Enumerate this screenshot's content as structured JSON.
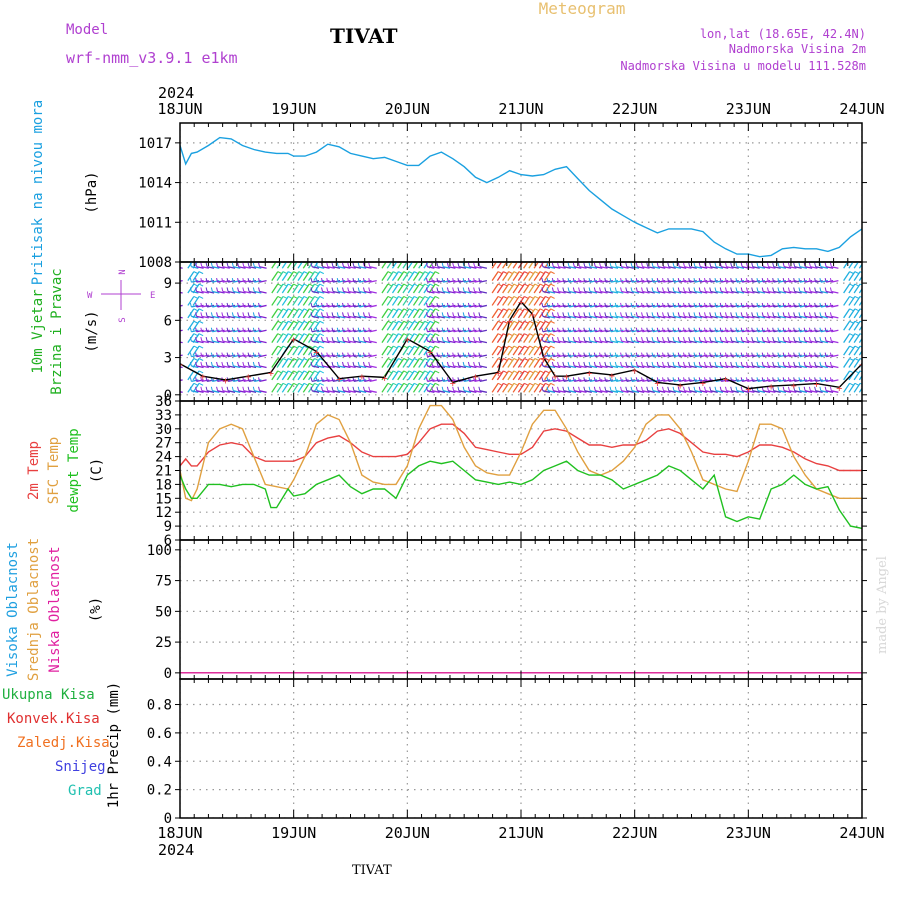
{
  "header": {
    "model_label": "Model",
    "model_name": "wrf-nmm_v3.9.1 e1km",
    "station": "TIVAT",
    "product": "Meteogram",
    "location_line1": "lon,lat (18.65E, 42.4N)",
    "location_line2": "Nadmorska Visina 2m",
    "location_line3": "Nadmorska Visina u modelu 111.528m"
  },
  "footer": {
    "station": "TIVAT",
    "credit": "made by Angel"
  },
  "time_axis": {
    "year": "2024",
    "days": [
      "18JUN",
      "19JUN",
      "20JUN",
      "21JUN",
      "22JUN",
      "23JUN",
      "24JUN"
    ]
  },
  "colors": {
    "pressure": "#1aa0e0",
    "t2m": "#e84040",
    "sfc": "#e0a040",
    "dewpt": "#20c020",
    "visoka": "#20a0e0",
    "srednja": "#e0a040",
    "niska": "#e020a0",
    "ukupna": "#20b040",
    "konvek": "#e03030",
    "zaledj": "#f07020",
    "snijeg": "#4040e0",
    "grad": "#20c0b0",
    "wind_title": "#20b020",
    "compass": "#b040d0",
    "header_purple": "#b040d0",
    "meteogram_title": "#e8c070",
    "credit": "#d0d0d0"
  },
  "chart_data": [
    {
      "type": "line",
      "panel": "pressure",
      "ylabel_lines": [
        "Pritisak na nivou mora"
      ],
      "unit": "(hPa)",
      "ylim": [
        1008,
        1018.5
      ],
      "yticks": [
        1008,
        1011,
        1014,
        1017
      ],
      "grid": true,
      "series": [
        {
          "color_key": "pressure",
          "x": [
            0,
            0.05,
            0.1,
            0.15,
            0.25,
            0.35,
            0.45,
            0.55,
            0.65,
            0.75,
            0.85,
            0.95,
            1.0,
            1.1,
            1.2,
            1.3,
            1.4,
            1.5,
            1.6,
            1.7,
            1.8,
            1.9,
            2.0,
            2.1,
            2.2,
            2.3,
            2.4,
            2.5,
            2.6,
            2.7,
            2.8,
            2.9,
            3.0,
            3.1,
            3.2,
            3.3,
            3.4,
            3.5,
            3.6,
            3.7,
            3.8,
            3.9,
            4.0,
            4.1,
            4.2,
            4.3,
            4.4,
            4.5,
            4.6,
            4.7,
            4.8,
            4.9,
            5.0,
            5.1,
            5.2,
            5.3,
            5.4,
            5.5,
            5.6,
            5.7,
            5.8,
            5.9,
            6.0
          ],
          "y": [
            1016.8,
            1015.4,
            1016.2,
            1016.3,
            1016.8,
            1017.4,
            1017.3,
            1016.8,
            1016.5,
            1016.3,
            1016.2,
            1016.2,
            1016.0,
            1016.0,
            1016.3,
            1016.9,
            1016.7,
            1016.2,
            1016.0,
            1015.8,
            1015.9,
            1015.6,
            1015.3,
            1015.3,
            1016.0,
            1016.3,
            1015.8,
            1015.2,
            1014.4,
            1014.0,
            1014.4,
            1014.9,
            1014.6,
            1014.5,
            1014.6,
            1015.0,
            1015.2,
            1014.3,
            1013.4,
            1012.7,
            1012.0,
            1011.5,
            1011.0,
            1010.6,
            1010.2,
            1010.5,
            1010.5,
            1010.5,
            1010.3,
            1009.5,
            1009.0,
            1008.6,
            1008.6,
            1008.4,
            1008.5,
            1009.0,
            1009.1,
            1009.0,
            1009.0,
            1008.8,
            1009.1,
            1009.9,
            1010.5
          ]
        }
      ]
    },
    {
      "type": "barbs",
      "panel": "wind",
      "ylabel_lines": [
        "10m Vjetar",
        "Brzina i Pravac"
      ],
      "unit": "(m/s)",
      "ylim": [
        -0.5,
        10.7
      ],
      "yticks": [
        0,
        3,
        6,
        9
      ],
      "compass": {
        "n": "N",
        "s": "S",
        "w": "W",
        "e": "E"
      },
      "grid": true,
      "speed_line": {
        "x": [
          0,
          0.2,
          0.4,
          0.6,
          0.8,
          1.0,
          1.2,
          1.4,
          1.6,
          1.8,
          2.0,
          2.2,
          2.4,
          2.6,
          2.8,
          2.9,
          3.0,
          3.1,
          3.2,
          3.3,
          3.4,
          3.6,
          3.8,
          4.0,
          4.2,
          4.4,
          4.6,
          4.8,
          5.0,
          5.2,
          5.4,
          5.6,
          5.8,
          6.0
        ],
        "y": [
          2.5,
          1.5,
          1.2,
          1.5,
          1.8,
          4.5,
          3.5,
          1.3,
          1.5,
          1.4,
          4.5,
          3.5,
          1.0,
          1.5,
          1.8,
          6.0,
          7.5,
          6.5,
          3.0,
          1.5,
          1.5,
          1.8,
          1.6,
          2.0,
          1.0,
          0.8,
          1.0,
          1.3,
          0.5,
          0.7,
          0.8,
          0.9,
          0.6,
          2.5
        ]
      }
    },
    {
      "type": "line",
      "panel": "temperature",
      "ylabel_lines": [
        "2m Temp",
        "SFC Temp",
        "dewpt Temp"
      ],
      "unit": "(C)",
      "ylim": [
        6,
        36
      ],
      "yticks": [
        6,
        9,
        12,
        15,
        18,
        21,
        24,
        27,
        30,
        33,
        36
      ],
      "grid": true,
      "series": [
        {
          "color_key": "t2m",
          "x": [
            0,
            0.05,
            0.1,
            0.15,
            0.25,
            0.35,
            0.45,
            0.55,
            0.65,
            0.75,
            0.85,
            0.95,
            1.0,
            1.1,
            1.2,
            1.3,
            1.4,
            1.5,
            1.6,
            1.7,
            1.8,
            1.9,
            2.0,
            2.1,
            2.2,
            2.3,
            2.4,
            2.5,
            2.6,
            2.7,
            2.8,
            2.9,
            3.0,
            3.1,
            3.2,
            3.3,
            3.4,
            3.5,
            3.6,
            3.7,
            3.8,
            3.9,
            4.0,
            4.1,
            4.2,
            4.3,
            4.4,
            4.5,
            4.6,
            4.7,
            4.8,
            4.9,
            5.0,
            5.1,
            5.2,
            5.3,
            5.4,
            5.5,
            5.6,
            5.7,
            5.8,
            5.9,
            6.0
          ],
          "y": [
            22,
            23.5,
            22,
            22,
            25,
            26.5,
            27,
            26.5,
            24,
            23,
            23,
            23,
            23,
            24,
            27,
            28,
            28.5,
            27,
            25,
            24,
            24,
            24,
            24.5,
            27,
            30,
            31,
            31,
            29,
            26,
            25.5,
            25,
            24.5,
            24.5,
            26,
            29.5,
            30,
            29.5,
            28,
            26.5,
            26.5,
            26,
            26.5,
            26.5,
            27.5,
            29.5,
            30,
            29,
            27,
            25,
            24.5,
            24.5,
            24,
            25,
            26.5,
            26.5,
            26,
            25,
            23.5,
            22.5,
            22,
            21,
            21,
            21
          ]
        },
        {
          "color_key": "sfc",
          "x": [
            0,
            0.05,
            0.1,
            0.15,
            0.25,
            0.35,
            0.45,
            0.55,
            0.65,
            0.75,
            0.85,
            0.95,
            1.0,
            1.1,
            1.2,
            1.3,
            1.4,
            1.5,
            1.6,
            1.7,
            1.8,
            1.9,
            2.0,
            2.1,
            2.2,
            2.3,
            2.4,
            2.5,
            2.6,
            2.7,
            2.8,
            2.9,
            3.0,
            3.1,
            3.2,
            3.3,
            3.4,
            3.5,
            3.6,
            3.7,
            3.8,
            3.9,
            4.0,
            4.1,
            4.2,
            4.3,
            4.4,
            4.5,
            4.6,
            4.7,
            4.8,
            4.9,
            5.0,
            5.1,
            5.2,
            5.3,
            5.4,
            5.5,
            5.6,
            5.7,
            5.8,
            5.9,
            6.0
          ],
          "y": [
            21,
            15,
            14.5,
            17,
            27,
            30,
            31,
            30,
            24,
            18,
            17.5,
            17,
            19,
            24,
            31,
            33,
            32,
            27,
            20,
            18.5,
            18,
            18,
            22,
            30,
            35,
            35,
            32,
            26,
            22,
            20.5,
            20,
            20,
            25,
            31,
            34,
            34,
            30,
            25,
            21,
            20,
            21,
            23,
            26,
            31,
            33,
            33,
            30,
            25,
            19,
            18,
            17,
            16.5,
            23,
            31,
            31,
            30,
            24,
            20,
            17,
            16,
            15,
            15,
            15
          ]
        },
        {
          "color_key": "dewpt",
          "x": [
            0,
            0.05,
            0.1,
            0.15,
            0.25,
            0.35,
            0.45,
            0.55,
            0.65,
            0.75,
            0.8,
            0.85,
            0.95,
            1.0,
            1.1,
            1.2,
            1.3,
            1.4,
            1.5,
            1.6,
            1.7,
            1.8,
            1.9,
            2.0,
            2.1,
            2.2,
            2.3,
            2.4,
            2.5,
            2.6,
            2.7,
            2.8,
            2.9,
            3.0,
            3.1,
            3.2,
            3.3,
            3.4,
            3.5,
            3.6,
            3.7,
            3.8,
            3.9,
            4.0,
            4.1,
            4.2,
            4.3,
            4.4,
            4.5,
            4.6,
            4.7,
            4.8,
            4.9,
            5.0,
            5.1,
            5.2,
            5.3,
            5.4,
            5.5,
            5.6,
            5.7,
            5.8,
            5.9,
            6.0
          ],
          "y": [
            20,
            17,
            15,
            15,
            18,
            18,
            17.5,
            18,
            18,
            17,
            13,
            13,
            17,
            15.5,
            16,
            18,
            19,
            20,
            17.5,
            16,
            17,
            17,
            15,
            20,
            22,
            23,
            22.5,
            23,
            21,
            19,
            18.5,
            18,
            18.5,
            18,
            19,
            21,
            22,
            23,
            21,
            20,
            20,
            19,
            17,
            18,
            19,
            20,
            22,
            21,
            19,
            17,
            20,
            11,
            10,
            11,
            10.5,
            17,
            18,
            20,
            18,
            17,
            17.5,
            12.5,
            9,
            8.5
          ]
        }
      ]
    },
    {
      "type": "line",
      "panel": "cloud",
      "ylabel_lines": [
        "Visoka Oblacnost",
        "Srednja Oblacnost",
        "Niska Oblacnost"
      ],
      "unit": "(%)",
      "ylim": [
        -5,
        108
      ],
      "yticks": [
        0,
        25,
        50,
        75,
        100
      ],
      "grid": true,
      "series": [
        {
          "color_key": "visoka",
          "x": [
            0,
            6
          ],
          "y": [
            0,
            0
          ]
        },
        {
          "color_key": "srednja",
          "x": [
            0,
            6
          ],
          "y": [
            0,
            0
          ]
        },
        {
          "color_key": "niska",
          "x": [
            0,
            6
          ],
          "y": [
            0,
            0
          ]
        }
      ]
    },
    {
      "type": "line",
      "panel": "precip",
      "legend": [
        "Ukupna Kisa",
        "Konvek.Kisa",
        "Zaledj.Kisa",
        "Snijeg",
        "Grad"
      ],
      "ylabel_lines": [
        "1hr Precip (mm)"
      ],
      "ylim": [
        0,
        0.98
      ],
      "yticks": [
        0,
        0.2,
        0.4,
        0.6,
        0.8
      ],
      "ytick_labels": [
        "0",
        "0.2",
        "0.4",
        "0.6",
        "0.8"
      ],
      "grid": true,
      "series": []
    }
  ]
}
